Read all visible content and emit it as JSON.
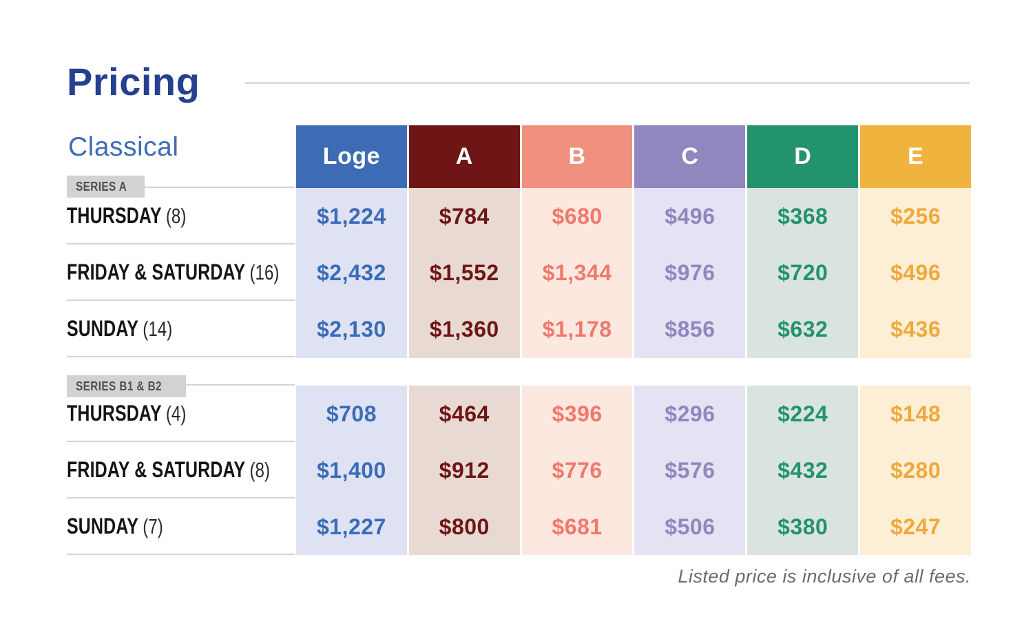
{
  "page": {
    "title": "Pricing",
    "subtitle": "Classical",
    "footnote": "Listed price is inclusive of all fees."
  },
  "theme": {
    "title_color": "#263f8f",
    "subtitle_color": "#3d6db5",
    "badge_bg": "#d2d2d2",
    "badge_text": "#4e4f51",
    "day_text": "#151515",
    "separator": "#d4d4d4",
    "rule": "#dcdae9",
    "footnote_color": "#6a6b6e"
  },
  "columns": [
    {
      "label": "Loge",
      "header_color": "#3d6cb4",
      "body_color": "#dee2f2",
      "text_color": "#3a6cb8"
    },
    {
      "label": "A",
      "header_color": "#6e1515",
      "body_color": "#e8dad3",
      "text_color": "#6e1515"
    },
    {
      "label": "B",
      "header_color": "#f0917f",
      "body_color": "#fde8e0",
      "text_color": "#f0796c"
    },
    {
      "label": "C",
      "header_color": "#9286bf",
      "body_color": "#e5e2f3",
      "text_color": "#9286bf"
    },
    {
      "label": "D",
      "header_color": "#22926f",
      "body_color": "#dae4de",
      "text_color": "#22926f"
    },
    {
      "label": "E",
      "header_color": "#f0b43e",
      "body_color": "#fdeed6",
      "text_color": "#efa93b"
    }
  ],
  "sections": [
    {
      "badge": "SERIES A",
      "rows": [
        {
          "day": "THURSDAY",
          "count": "(8)",
          "values": [
            "$1,224",
            "$784",
            "$680",
            "$496",
            "$368",
            "$256"
          ]
        },
        {
          "day": "FRIDAY & SATURDAY",
          "count": "(16)",
          "values": [
            "$2,432",
            "$1,552",
            "$1,344",
            "$976",
            "$720",
            "$496"
          ]
        },
        {
          "day": "SUNDAY",
          "count": "(14)",
          "values": [
            "$2,130",
            "$1,360",
            "$1,178",
            "$856",
            "$632",
            "$436"
          ]
        }
      ]
    },
    {
      "badge": "SERIES B1 & B2",
      "rows": [
        {
          "day": "THURSDAY",
          "count": "(4)",
          "values": [
            "$708",
            "$464",
            "$396",
            "$296",
            "$224",
            "$148"
          ]
        },
        {
          "day": "FRIDAY & SATURDAY",
          "count": "(8)",
          "values": [
            "$1,400",
            "$912",
            "$776",
            "$576",
            "$432",
            "$280"
          ]
        },
        {
          "day": "SUNDAY",
          "count": "(7)",
          "values": [
            "$1,227",
            "$800",
            "$681",
            "$506",
            "$380",
            "$247"
          ]
        }
      ]
    }
  ],
  "chart_data": {
    "type": "table",
    "title": "Pricing",
    "subtitle": "Classical",
    "columns": [
      "Loge",
      "A",
      "B",
      "C",
      "D",
      "E"
    ],
    "sections": [
      {
        "name": "SERIES A",
        "rows": [
          {
            "label": "THURSDAY (8)",
            "values": [
              1224,
              784,
              680,
              496,
              368,
              256
            ]
          },
          {
            "label": "FRIDAY & SATURDAY (16)",
            "values": [
              2432,
              1552,
              1344,
              976,
              720,
              496
            ]
          },
          {
            "label": "SUNDAY (14)",
            "values": [
              2130,
              1360,
              1178,
              856,
              632,
              436
            ]
          }
        ]
      },
      {
        "name": "SERIES B1 & B2",
        "rows": [
          {
            "label": "THURSDAY (4)",
            "values": [
              708,
              464,
              396,
              296,
              224,
              148
            ]
          },
          {
            "label": "FRIDAY & SATURDAY (8)",
            "values": [
              1400,
              912,
              776,
              576,
              432,
              280
            ]
          },
          {
            "label": "SUNDAY (7)",
            "values": [
              1227,
              800,
              681,
              506,
              380,
              247
            ]
          }
        ]
      }
    ],
    "note": "Listed price is inclusive of all fees."
  }
}
